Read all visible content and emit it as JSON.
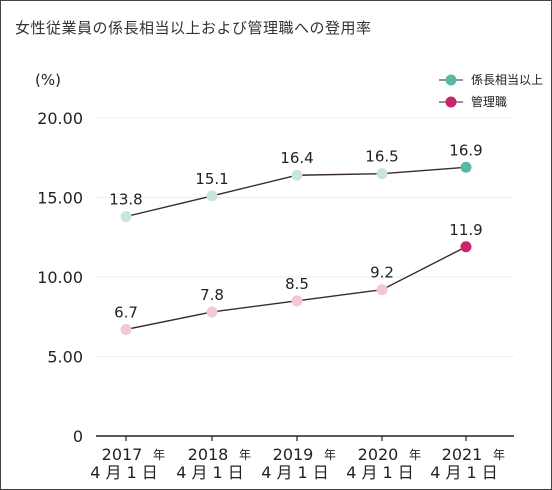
{
  "title": "女性従業員の係長相当以上および管理職への登用率",
  "chart_data": {
    "type": "line",
    "unit_label": "(%)",
    "categories": [
      {
        "year": "2017",
        "year_suffix": "年",
        "date": "4月1日"
      },
      {
        "year": "2018",
        "year_suffix": "年",
        "date": "4月1日"
      },
      {
        "year": "2019",
        "year_suffix": "年",
        "date": "4月1日"
      },
      {
        "year": "2020",
        "year_suffix": "年",
        "date": "4月1日"
      },
      {
        "year": "2021",
        "year_suffix": "年",
        "date": "4月1日"
      }
    ],
    "y_ticks": [
      "0",
      "5.00",
      "10.00",
      "15.00",
      "20.00"
    ],
    "ylim": [
      0,
      20
    ],
    "grid": true,
    "legend_position": "top-right",
    "series": [
      {
        "name": "係長相当以上",
        "values": [
          13.8,
          15.1,
          16.4,
          16.5,
          16.9
        ],
        "labels": [
          "13.8",
          "15.1",
          "16.4",
          "16.5",
          "16.9"
        ],
        "point_color": "#c8e6dc",
        "last_point_color": "#5cb8a6",
        "line_color": "#3a2a2a"
      },
      {
        "name": "管理職",
        "values": [
          6.7,
          7.8,
          8.5,
          9.2,
          11.9
        ],
        "labels": [
          "6.7",
          "7.8",
          "8.5",
          "9.2",
          "11.9"
        ],
        "point_color": "#f2c8d6",
        "last_point_color": "#c8246e",
        "line_color": "#3a2a2a"
      }
    ]
  }
}
